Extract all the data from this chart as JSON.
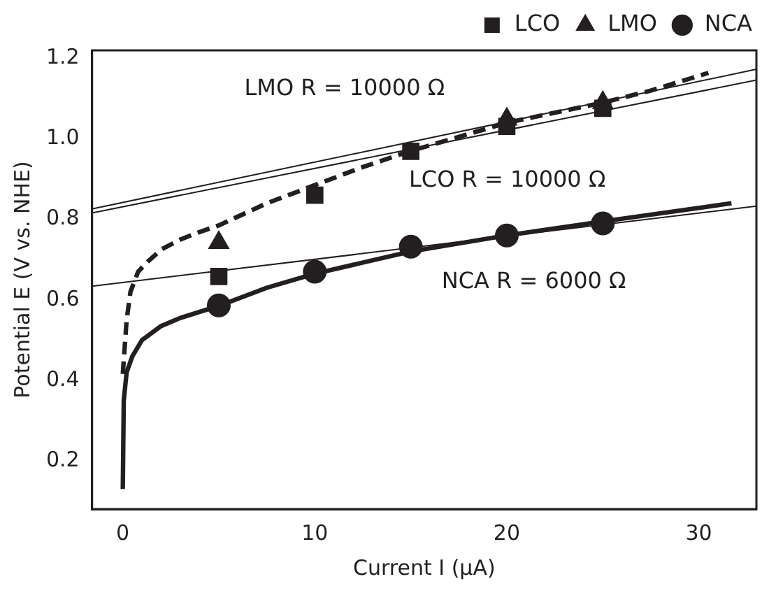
{
  "chart_data": {
    "type": "scatter",
    "xlabel": "Current I (μA)",
    "ylabel": "Potential E (V vs. NHE)",
    "xlim": [
      -1.6,
      33
    ],
    "xticks": [
      0,
      10,
      20,
      30
    ],
    "ylim": [
      0.08,
      1.22
    ],
    "yticks": [
      0.2,
      0.4,
      0.6,
      0.8,
      {
        "value": 1,
        "label": "1.0"
      },
      1.2
    ],
    "grid": false,
    "legend": "top right",
    "series": [
      {
        "type": "line",
        "color": "#231f20",
        "line_style": "solid",
        "marker": "none",
        "x": [
          -1.6,
          33
        ],
        "values": [
          0.826,
          1.173
        ]
      },
      {
        "type": "line",
        "color": "#231f20",
        "line_style": "solid",
        "marker": "none",
        "x": [
          -1.6,
          33
        ],
        "values": [
          0.816,
          1.146
        ]
      },
      {
        "type": "line",
        "color": "#231f20",
        "line_style": "solid",
        "marker": "none",
        "x": [
          -1.6,
          33
        ],
        "values": [
          0.634,
          0.833
        ]
      },
      {
        "type": "line",
        "color": "#231f20",
        "line_style": "dashed",
        "marker": "none",
        "x": [
          0,
          0.2,
          0.4,
          0.8,
          1.3,
          2,
          3,
          3.9,
          5,
          7.5,
          10,
          12.5,
          15,
          17.5,
          20,
          22.5,
          25,
          27.5,
          30.5
        ],
        "values": [
          0.416,
          0.55,
          0.62,
          0.67,
          0.695,
          0.725,
          0.75,
          0.767,
          0.785,
          0.84,
          0.885,
          0.93,
          0.97,
          1.005,
          1.04,
          1.065,
          1.09,
          1.12,
          1.164
        ]
      },
      {
        "type": "line",
        "color": "#231f20",
        "line_style": "solid",
        "marker": "none",
        "x": [
          0,
          0.05,
          0.2,
          0.5,
          1,
          2,
          3,
          5,
          7.5,
          10,
          15,
          20,
          25,
          31.7
        ],
        "values": [
          0.13,
          0.35,
          0.42,
          0.46,
          0.5,
          0.535,
          0.555,
          0.585,
          0.63,
          0.665,
          0.72,
          0.76,
          0.795,
          0.84
        ]
      },
      {
        "name": "LCO",
        "color": "#231f20",
        "marker": "square",
        "x": [
          5,
          10,
          15,
          20,
          25
        ],
        "values": [
          0.658,
          0.86,
          0.969,
          1.031,
          1.076
        ]
      },
      {
        "name": "LMO",
        "color": "#231f20",
        "marker": "triangle",
        "x": [
          5,
          10,
          15,
          20,
          25
        ],
        "values": [
          0.742,
          null,
          null,
          1.049,
          1.09
        ]
      },
      {
        "name": "NCA",
        "color": "#231f20",
        "marker": "circle",
        "x": [
          5,
          10,
          15,
          20,
          25
        ],
        "values": [
          0.586,
          0.67,
          0.732,
          0.76,
          0.79
        ]
      }
    ],
    "annotations": [
      "LMO R = 10000 Ω",
      "LCO R = 10000 Ω",
      "NCA R = 6000 Ω"
    ]
  }
}
